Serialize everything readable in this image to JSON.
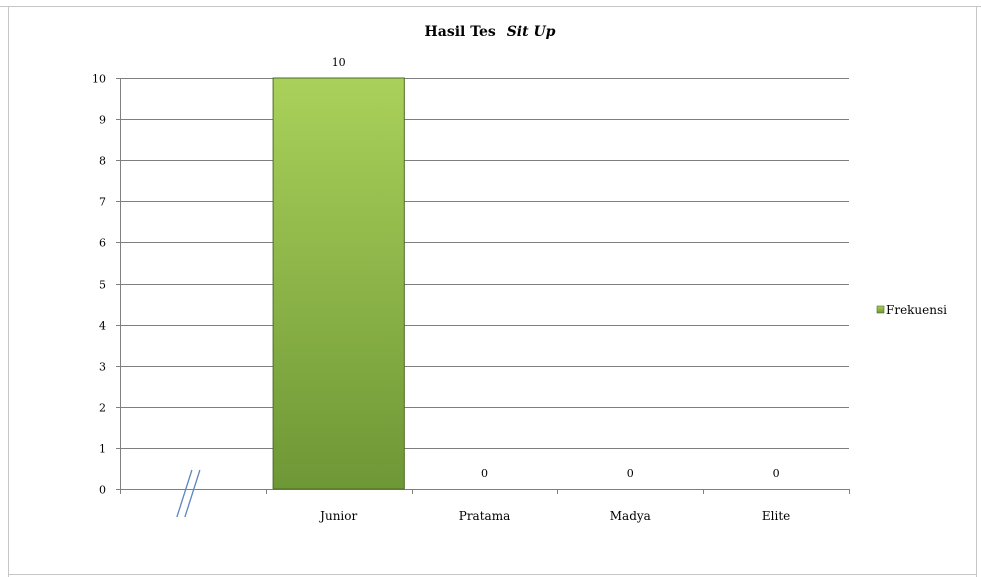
{
  "chart_data": {
    "type": "bar",
    "title_main": "Hasil Tes",
    "title_emphasis": "Sit Up",
    "xlabel": "",
    "ylabel": "",
    "categories": [
      "//",
      "Junior",
      "Pratama",
      "Madya",
      "Elite"
    ],
    "series": [
      {
        "name": "Frekuensi",
        "values": [
          null,
          10,
          0,
          0,
          0
        ]
      }
    ],
    "data_labels": [
      "",
      "10",
      "0",
      "0",
      "0"
    ],
    "ylim": [
      0,
      10
    ],
    "yticks": [
      "0",
      "1",
      "2",
      "3",
      "4",
      "5",
      "6",
      "7",
      "8",
      "9",
      "10"
    ],
    "grid": true,
    "legend_position": "right",
    "colors": {
      "bar_top": "#a9d15a",
      "bar_bottom": "#6e9736",
      "bar_edge": "#4d6b25",
      "grid": "#7f7f7f",
      "axis": "#7f7f7f"
    }
  }
}
